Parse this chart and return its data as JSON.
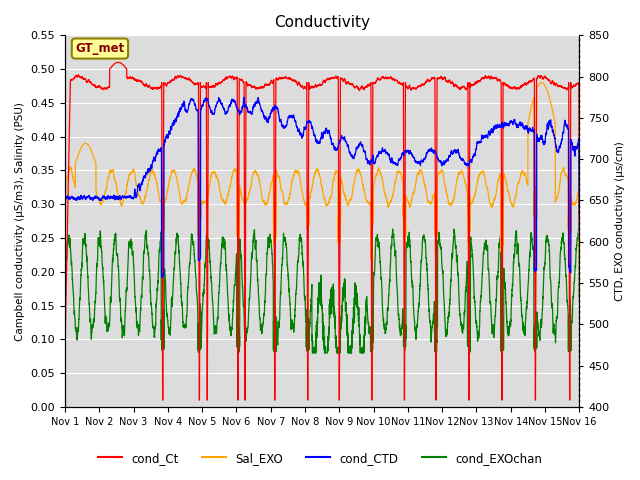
{
  "title": "Conductivity",
  "ylabel_left": "Campbell conductivity (μS/m3), Salinity (PSU)",
  "ylabel_right": "CTD, EXO conductivity (μs/cm)",
  "ylim_left": [
    0.0,
    0.55
  ],
  "ylim_right": [
    400,
    850
  ],
  "yticks_left": [
    0.0,
    0.05,
    0.1,
    0.15,
    0.2,
    0.25,
    0.3,
    0.35,
    0.4,
    0.45,
    0.5,
    0.55
  ],
  "yticks_right": [
    400,
    450,
    500,
    550,
    600,
    650,
    700,
    750,
    800,
    850
  ],
  "xtick_labels": [
    "Nov 1",
    "Nov 2",
    "Nov 3",
    "Nov 4",
    "Nov 5",
    "Nov 6",
    "Nov 7",
    "Nov 8",
    "Nov 9",
    "Nov 10",
    "Nov 11",
    "Nov 12",
    "Nov 13",
    "Nov 14",
    "Nov 15",
    "Nov 16"
  ],
  "annotation_text": "GT_met",
  "background_color": "#DCDCDC",
  "series_colors": {
    "cond_Ct": "red",
    "Sal_EXO": "orange",
    "cond_CTD": "blue",
    "cond_EXOchan": "green"
  },
  "n_days": 15,
  "pts_per_day": 288
}
